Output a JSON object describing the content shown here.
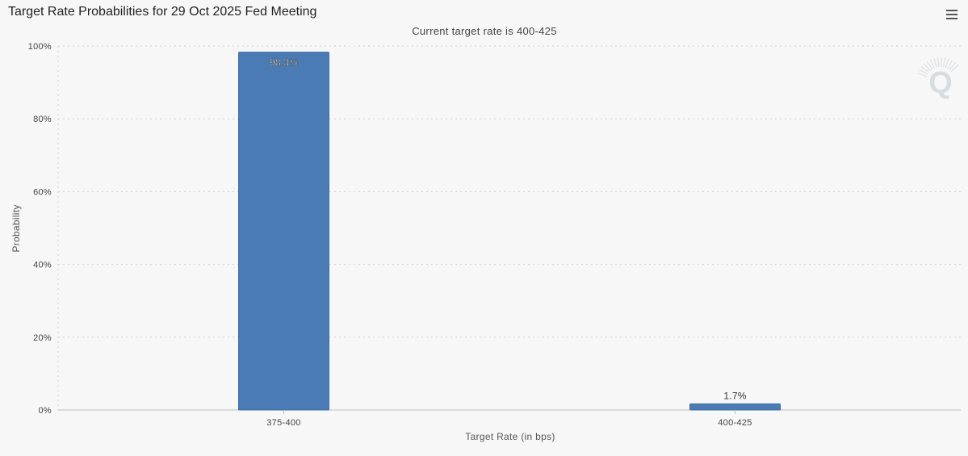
{
  "header": {
    "title": "Target Rate Probabilities for 29 Oct 2025 Fed Meeting",
    "menu_icon": "hamburger-menu-icon"
  },
  "watermark": {
    "icon": "q-logo-icon"
  },
  "colors": {
    "bar": "#4b7bb4",
    "bar_stroke": "#3f6ea6",
    "grid": "#cfcfcf",
    "axis": "#bfbfbf",
    "background": "#f7f7f7"
  },
  "chart_data": {
    "type": "bar",
    "title": "Target Rate Probabilities for 29 Oct 2025 Fed Meeting",
    "subtitle": "Current target rate is 400-425",
    "categories": [
      "375-400",
      "400-425"
    ],
    "values": [
      98.3,
      1.7
    ],
    "data_labels": [
      "98.3%",
      "1.7%"
    ],
    "xlabel": "Target Rate (in bps)",
    "ylabel": "Probability",
    "ylim": [
      0,
      100
    ],
    "yticks": [
      0,
      20,
      40,
      60,
      80,
      100
    ],
    "ytick_labels": [
      "0%",
      "20%",
      "40%",
      "60%",
      "80%",
      "100%"
    ],
    "grid": true,
    "legend": "none"
  }
}
